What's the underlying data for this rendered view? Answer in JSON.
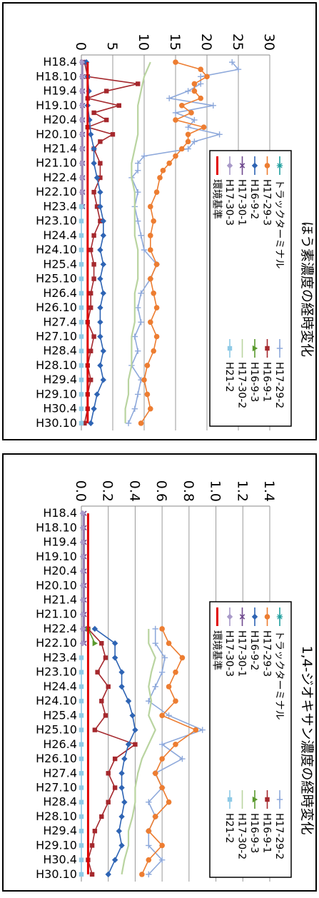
{
  "colors": {
    "H17-29-2": "#8ea9db",
    "H17-29-3": "#ed7d31",
    "H16-9-1": "#a5282d",
    "H16-9-2": "#2e64b4",
    "H16-9-3": "#5a9a2e",
    "H17-30-1": "#6f4a8e",
    "H17-30-2": "#b9d4a0",
    "H17-30-3": "#a99ac9",
    "H21-2": "#8ecae6",
    "trucker": "#1f9e9e",
    "standard": "#e00000"
  },
  "chart_data": [
    {
      "type": "line",
      "title": "ほう素濃度の経時変化",
      "xlabel": "",
      "ylabel": "",
      "ylim": [
        0,
        30
      ],
      "yticks": [
        "0",
        "5",
        "10",
        "15",
        "20",
        "25",
        "30"
      ],
      "ytick_values": [
        0,
        5,
        10,
        15,
        20,
        25,
        30
      ],
      "categories": [
        "H18.4",
        "H18.10",
        "H19.4",
        "H19.10",
        "H20.4",
        "H20.10",
        "H21.4",
        "H21.10",
        "H22.4",
        "H22.10",
        "H23.4",
        "H23.10",
        "H24.4",
        "H24.10",
        "H25.4",
        "H25.10",
        "H26.4",
        "H26.10",
        "H27.4",
        "H27.10",
        "H28.4",
        "H28.10",
        "H29.4",
        "H29.10",
        "H30.4",
        "H30.10"
      ],
      "legend": {
        "placement": "right",
        "left": [
          {
            "key": "trucker",
            "label": "トラックターミナル",
            "marker": "star"
          },
          {
            "key": "H17-29-3",
            "label": "H17-29-3",
            "marker": "circle"
          },
          {
            "key": "H16-9-2",
            "label": "H16-9-2",
            "marker": "diamond"
          },
          {
            "key": "H17-30-1",
            "label": "H17-30-1",
            "marker": "x"
          },
          {
            "key": "H17-30-3",
            "label": "H17-30-3",
            "marker": "diamond"
          },
          {
            "key": "standard",
            "label": "環境基準",
            "marker": "line"
          }
        ],
        "right": [
          {
            "key": "H17-29-2",
            "label": "H17-29-2",
            "marker": "plus"
          },
          {
            "key": "H16-9-1",
            "label": "H16-9-1",
            "marker": "square"
          },
          {
            "key": "H16-9-3",
            "label": "H16-9-3",
            "marker": "triangle"
          },
          {
            "key": "H17-30-2",
            "label": "H17-30-2",
            "marker": "line"
          },
          {
            "key": "H21-2",
            "label": "H21-2",
            "marker": "square"
          }
        ]
      },
      "series": [
        {
          "name": "H17-29-2",
          "marker": "plus",
          "x": [
            0,
            0.5,
            1,
            1.5,
            2,
            2.5,
            3,
            3.5,
            4,
            4.5,
            5,
            5.5,
            6,
            6.5,
            7,
            7.5,
            8,
            9,
            10,
            11,
            12,
            13,
            14,
            15,
            16,
            17,
            18,
            19,
            20,
            21,
            22,
            23,
            24,
            25
          ],
          "values": [
            24,
            25,
            19,
            19,
            17,
            14,
            21,
            15,
            18,
            17,
            22,
            18,
            17,
            10,
            9,
            9,
            8,
            9,
            8.5,
            9,
            9.5,
            10,
            12,
            11,
            9.5,
            9,
            9.5,
            8.5,
            9,
            8,
            9.5,
            9,
            8.5,
            7.5
          ]
        },
        {
          "name": "H17-29-3",
          "marker": "circle",
          "x": [
            0,
            0.5,
            1,
            1.5,
            2,
            2.5,
            3,
            3.5,
            4,
            4.5,
            5,
            5.5,
            6,
            6.5,
            7,
            7.5,
            8,
            9,
            10,
            11,
            12,
            13,
            14,
            15,
            16,
            17,
            18,
            19,
            20,
            21,
            22,
            23,
            24,
            25
          ],
          "values": [
            15,
            19,
            20,
            18,
            18,
            19,
            16,
            17.5,
            15,
            19.5,
            17,
            17,
            16,
            15,
            14,
            13,
            12.5,
            12,
            11,
            11.5,
            11,
            11,
            12,
            11,
            11.5,
            12,
            11,
            12,
            11.5,
            10.5,
            10,
            10.5,
            11,
            9.5
          ]
        },
        {
          "name": "H16-9-1",
          "marker": "square",
          "x": [
            0,
            1,
            1.5,
            2,
            2.5,
            3,
            3.5,
            4,
            4.5,
            5,
            5.5,
            6,
            7,
            8,
            9,
            10,
            11,
            12,
            13,
            14,
            15,
            16,
            17,
            18,
            19,
            20,
            21,
            22,
            23,
            24,
            25
          ],
          "values": [
            0.5,
            1,
            9,
            4,
            1,
            6,
            2,
            4,
            1,
            5,
            3,
            2,
            3,
            3,
            2,
            2.5,
            3,
            2,
            1.5,
            2,
            2,
            1.5,
            1.5,
            1,
            2,
            1.5,
            1,
            1.5,
            1,
            1,
            0.5
          ]
        },
        {
          "name": "H16-9-2",
          "marker": "diamond",
          "x": [
            0,
            1,
            2,
            3,
            4,
            5,
            6,
            7,
            8,
            9,
            10,
            11,
            12,
            13,
            14,
            15,
            16,
            17,
            18,
            19,
            20,
            21,
            22,
            23,
            24,
            25
          ],
          "values": [
            0.8,
            1,
            1.2,
            1,
            1.3,
            1.5,
            2,
            2,
            2.5,
            3,
            3,
            3.5,
            3.5,
            3,
            3.5,
            3,
            3.5,
            3,
            3,
            3,
            3.5,
            3,
            3.5,
            2.5,
            2,
            1.5
          ]
        },
        {
          "name": "H17-30-1",
          "marker": "x",
          "x": [
            0,
            1,
            2,
            3,
            4,
            5,
            6,
            7,
            8,
            9,
            10
          ],
          "values": [
            0.2,
            0.2,
            0.2,
            0.2,
            0.2,
            0.2,
            0.2,
            0.2,
            0.2,
            0.2,
            0.2
          ]
        },
        {
          "name": "H17-30-2",
          "marker": "none",
          "x": [
            0,
            1,
            2,
            3,
            4,
            5,
            6,
            7,
            8,
            9,
            10,
            11,
            12,
            13,
            14,
            15,
            16,
            17,
            18,
            19,
            20,
            21,
            22,
            23,
            24,
            25
          ],
          "values": [
            11,
            10,
            9.5,
            9,
            9,
            9,
            8.5,
            8,
            8,
            8.5,
            8.5,
            8.5,
            8.5,
            9,
            9,
            9,
            8.5,
            8.5,
            8.5,
            8,
            8,
            8,
            7.5,
            7.5,
            7,
            7
          ]
        },
        {
          "name": "H17-30-3",
          "marker": "diamond",
          "x": [
            0,
            1,
            2,
            3,
            4,
            5,
            6,
            7,
            8,
            9,
            10
          ],
          "values": [
            0.1,
            0.1,
            0.1,
            0.1,
            0.1,
            0.1,
            0.1,
            0.1,
            0.1,
            0.1,
            0.1
          ]
        },
        {
          "name": "H21-2",
          "marker": "square",
          "x": [
            10,
            11,
            12,
            13,
            14,
            15,
            16,
            17,
            18,
            19,
            20,
            21,
            22,
            23,
            24,
            25
          ],
          "values": [
            0,
            0,
            0,
            0,
            0,
            0,
            0,
            0,
            0,
            0,
            0,
            0,
            0,
            0,
            0,
            0
          ]
        },
        {
          "name": "環境基準",
          "marker": "none",
          "x": [
            0,
            25
          ],
          "values": [
            1,
            1
          ]
        }
      ]
    },
    {
      "type": "line",
      "title": "1,4-ジオキサン濃度の経時変化",
      "xlabel": "",
      "ylabel": "",
      "ylim": [
        0,
        1.4
      ],
      "yticks": [
        "0.0",
        "0.2",
        "0.4",
        "0.6",
        "0.8",
        "1.0",
        "1.2",
        "1.4"
      ],
      "ytick_values": [
        0,
        0.2,
        0.4,
        0.6,
        0.8,
        1.0,
        1.2,
        1.4
      ],
      "categories": [
        "H18.4",
        "H18.10",
        "H19.4",
        "H19.10",
        "H20.4",
        "H20.10",
        "H21.4",
        "H21.10",
        "H22.4",
        "H22.10",
        "H23.4",
        "H23.10",
        "H24.4",
        "H24.10",
        "H25.4",
        "H25.10",
        "H26.4",
        "H26.10",
        "H27.4",
        "H27.10",
        "H28.4",
        "H28.10",
        "H29.4",
        "H29.10",
        "H30.4",
        "H30.10"
      ],
      "legend": {
        "placement": "right",
        "left": [
          {
            "key": "trucker",
            "label": "トラックターミナル",
            "marker": "star"
          },
          {
            "key": "H17-29-3",
            "label": "H17-29-3",
            "marker": "circle"
          },
          {
            "key": "H16-9-2",
            "label": "H16-9-2",
            "marker": "diamond"
          },
          {
            "key": "H17-30-1",
            "label": "H17-30-1",
            "marker": "x"
          },
          {
            "key": "H17-30-3",
            "label": "H17-30-3",
            "marker": "diamond"
          },
          {
            "key": "standard",
            "label": "環境基準",
            "marker": "line"
          }
        ],
        "right": [
          {
            "key": "H17-29-2",
            "label": "H17-29-2",
            "marker": "plus"
          },
          {
            "key": "H16-9-1",
            "label": "H16-9-1",
            "marker": "square"
          },
          {
            "key": "H16-9-3",
            "label": "H16-9-3",
            "marker": "triangle"
          },
          {
            "key": "H17-30-2",
            "label": "H17-30-2",
            "marker": "line"
          },
          {
            "key": "H21-2",
            "label": "H21-2",
            "marker": "square"
          }
        ]
      },
      "series": [
        {
          "name": "H17-29-2",
          "marker": "plus",
          "x": [
            8,
            9,
            10,
            11,
            12,
            13,
            14,
            15,
            16,
            17,
            18,
            19,
            20,
            21,
            22,
            23,
            24,
            25
          ],
          "values": [
            0.55,
            0.55,
            0.62,
            0.6,
            0.55,
            0.5,
            0.65,
            0.9,
            0.6,
            0.75,
            0.55,
            0.6,
            0.5,
            0.55,
            0.5,
            0.5,
            0.6,
            0.5
          ]
        },
        {
          "name": "H17-29-3",
          "marker": "circle",
          "x": [
            8,
            9,
            10,
            11,
            12,
            13,
            14,
            15,
            16,
            17,
            18,
            19,
            20,
            21,
            22,
            23,
            24,
            25
          ],
          "values": [
            0.6,
            0.65,
            0.75,
            0.7,
            0.65,
            0.7,
            0.6,
            0.85,
            0.7,
            0.6,
            0.55,
            0.6,
            0.65,
            0.55,
            0.5,
            0.6,
            0.5,
            0.45
          ]
        },
        {
          "name": "H16-9-1",
          "marker": "square",
          "x": [
            8,
            9,
            10,
            11,
            12,
            13,
            14,
            15,
            16,
            17,
            18,
            19,
            20,
            21,
            22,
            23,
            24,
            25
          ],
          "values": [
            0.05,
            0.15,
            0.18,
            0.12,
            0.2,
            0.15,
            0.18,
            0.1,
            0.4,
            0.25,
            0.2,
            0.25,
            0.2,
            0.15,
            0.1,
            0.08,
            0.05,
            0.08
          ]
        },
        {
          "name": "H16-9-2",
          "marker": "diamond",
          "x": [
            8,
            9,
            10,
            11,
            12,
            13,
            14,
            15,
            16,
            17,
            18,
            19,
            20,
            21,
            22,
            23,
            24,
            25
          ],
          "values": [
            0.1,
            0.25,
            0.25,
            0.3,
            0.3,
            0.35,
            0.38,
            0.4,
            0.35,
            0.32,
            0.3,
            0.3,
            0.32,
            0.3,
            0.28,
            0.3,
            0.25,
            0.2
          ]
        },
        {
          "name": "H16-9-3",
          "marker": "triangle",
          "x": [
            8,
            9
          ],
          "values": [
            0.05,
            0.1
          ]
        },
        {
          "name": "H17-30-1",
          "marker": "x",
          "x": [
            0,
            1,
            2,
            3,
            4,
            5,
            6,
            7,
            8,
            9
          ],
          "values": [
            0.02,
            0.02,
            0.02,
            0.02,
            0.02,
            0.02,
            0.02,
            0.02,
            0.02,
            0.02
          ]
        },
        {
          "name": "H17-30-2",
          "marker": "none",
          "x": [
            8,
            9,
            10,
            11,
            12,
            13,
            14,
            15,
            16,
            17,
            18,
            19,
            20,
            21,
            22,
            23,
            24,
            25
          ],
          "values": [
            0.5,
            0.5,
            0.55,
            0.52,
            0.5,
            0.52,
            0.5,
            0.55,
            0.5,
            0.45,
            0.42,
            0.4,
            0.4,
            0.38,
            0.35,
            0.35,
            0.32,
            0.3
          ]
        },
        {
          "name": "H17-30-3",
          "marker": "diamond",
          "x": [
            0,
            1,
            2,
            3,
            4,
            5,
            6,
            7,
            8,
            9
          ],
          "values": [
            0.01,
            0.01,
            0.01,
            0.01,
            0.01,
            0.01,
            0.01,
            0.01,
            0.01,
            0.01
          ]
        },
        {
          "name": "H21-2",
          "marker": "square",
          "x": [
            10,
            11,
            12,
            13,
            14,
            15,
            16,
            17,
            18,
            19,
            20,
            21,
            22,
            23,
            24,
            25
          ],
          "values": [
            0,
            0,
            0,
            0,
            0,
            0,
            0,
            0,
            0,
            0,
            0,
            0,
            0,
            0,
            0,
            0
          ]
        },
        {
          "name": "環境基準",
          "marker": "none",
          "x": [
            0,
            25
          ],
          "values": [
            0.05,
            0.05
          ]
        }
      ]
    }
  ]
}
